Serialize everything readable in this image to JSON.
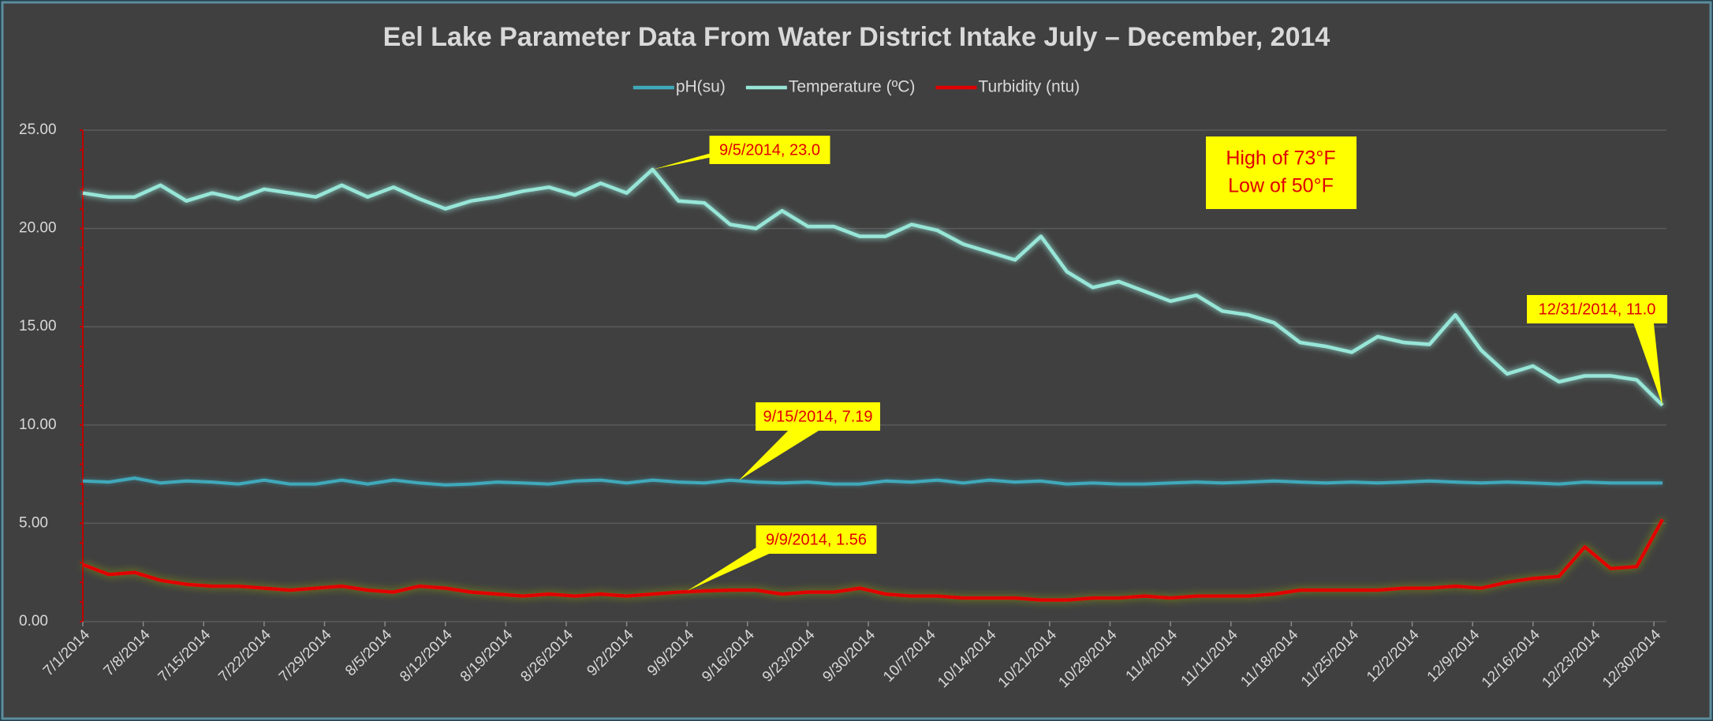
{
  "chart_data": {
    "type": "line",
    "title": "Eel Lake Parameter Data    From Water District Intake    July – December, 2014",
    "x": [
      "7/1/2014",
      "7/4/2014",
      "7/7/2014",
      "7/10/2014",
      "7/13/2014",
      "7/16/2014",
      "7/19/2014",
      "7/22/2014",
      "7/25/2014",
      "7/28/2014",
      "7/31/2014",
      "8/3/2014",
      "8/6/2014",
      "8/9/2014",
      "8/12/2014",
      "8/15/2014",
      "8/18/2014",
      "8/21/2014",
      "8/24/2014",
      "8/27/2014",
      "8/30/2014",
      "9/2/2014",
      "9/5/2014",
      "9/8/2014",
      "9/11/2014",
      "9/14/2014",
      "9/17/2014",
      "9/20/2014",
      "9/23/2014",
      "9/26/2014",
      "9/29/2014",
      "10/2/2014",
      "10/5/2014",
      "10/8/2014",
      "10/11/2014",
      "10/14/2014",
      "10/17/2014",
      "10/20/2014",
      "10/23/2014",
      "10/26/2014",
      "10/29/2014",
      "11/1/2014",
      "11/4/2014",
      "11/7/2014",
      "11/10/2014",
      "11/13/2014",
      "11/16/2014",
      "11/19/2014",
      "11/22/2014",
      "11/25/2014",
      "11/28/2014",
      "12/1/2014",
      "12/4/2014",
      "12/7/2014",
      "12/10/2014",
      "12/13/2014",
      "12/16/2014",
      "12/19/2014",
      "12/22/2014",
      "12/25/2014",
      "12/28/2014",
      "12/31/2014"
    ],
    "series": [
      {
        "name": "pH(su)",
        "color": "#3fa9bb",
        "values": [
          7.15,
          7.1,
          7.3,
          7.05,
          7.15,
          7.1,
          7.0,
          7.2,
          7.0,
          7.0,
          7.2,
          7.0,
          7.2,
          7.05,
          6.95,
          7.0,
          7.1,
          7.05,
          7.0,
          7.15,
          7.2,
          7.05,
          7.2,
          7.1,
          7.05,
          7.19,
          7.1,
          7.05,
          7.1,
          7.0,
          7.0,
          7.15,
          7.1,
          7.2,
          7.05,
          7.2,
          7.1,
          7.15,
          7.0,
          7.05,
          7.0,
          7.0,
          7.05,
          7.1,
          7.05,
          7.1,
          7.15,
          7.1,
          7.05,
          7.1,
          7.05,
          7.1,
          7.15,
          7.1,
          7.05,
          7.1,
          7.05,
          7.0,
          7.1,
          7.05,
          7.05,
          7.05
        ]
      },
      {
        "name": "Temperature (ºC)",
        "color": "#97e6d8",
        "values": [
          21.8,
          21.6,
          21.6,
          22.2,
          21.4,
          21.8,
          21.5,
          22.0,
          21.8,
          21.6,
          22.2,
          21.6,
          22.1,
          21.5,
          21.0,
          21.4,
          21.6,
          21.9,
          22.1,
          21.7,
          22.3,
          21.8,
          23.0,
          21.4,
          21.3,
          20.2,
          20.0,
          20.9,
          20.1,
          20.1,
          19.6,
          19.6,
          20.2,
          19.9,
          19.2,
          18.8,
          18.4,
          19.6,
          17.8,
          17.0,
          17.3,
          16.8,
          16.3,
          16.6,
          15.8,
          15.6,
          15.2,
          14.2,
          14.0,
          13.7,
          14.5,
          14.2,
          14.1,
          15.6,
          13.8,
          12.6,
          13.0,
          12.2,
          12.5,
          12.5,
          12.3,
          11.0
        ]
      },
      {
        "name": "Turbidity (ntu)",
        "color": "#e00000",
        "values": [
          2.9,
          2.4,
          2.5,
          2.1,
          1.9,
          1.8,
          1.8,
          1.7,
          1.6,
          1.7,
          1.8,
          1.6,
          1.5,
          1.8,
          1.7,
          1.5,
          1.4,
          1.3,
          1.4,
          1.3,
          1.4,
          1.3,
          1.4,
          1.5,
          1.56,
          1.6,
          1.6,
          1.4,
          1.5,
          1.5,
          1.7,
          1.4,
          1.3,
          1.3,
          1.2,
          1.2,
          1.2,
          1.1,
          1.1,
          1.2,
          1.2,
          1.3,
          1.2,
          1.3,
          1.3,
          1.3,
          1.4,
          1.6,
          1.6,
          1.6,
          1.6,
          1.7,
          1.7,
          1.8,
          1.7,
          2.0,
          2.2,
          2.3,
          3.8,
          2.7,
          2.8,
          5.2
        ]
      }
    ],
    "xlim": [
      "7/1/2014",
      "12/31/2014"
    ],
    "xticks": [
      "7/1/2014",
      "7/8/2014",
      "7/15/2014",
      "7/22/2014",
      "7/29/2014",
      "8/5/2014",
      "8/12/2014",
      "8/19/2014",
      "8/26/2014",
      "9/2/2014",
      "9/9/2014",
      "9/16/2014",
      "9/23/2014",
      "9/30/2014",
      "10/7/2014",
      "10/14/2014",
      "10/21/2014",
      "10/28/2014",
      "11/4/2014",
      "11/11/2014",
      "11/18/2014",
      "11/25/2014",
      "12/2/2014",
      "12/9/2014",
      "12/16/2014",
      "12/23/2014",
      "12/30/2014"
    ],
    "ylim": [
      0,
      25
    ],
    "yticks": [
      {
        "value": 0,
        "label": "0.00"
      },
      {
        "value": 5,
        "label": "5.00"
      },
      {
        "value": 10,
        "label": "10.00"
      },
      {
        "value": 15,
        "label": "15.00"
      },
      {
        "value": 20,
        "label": "20.00"
      },
      {
        "value": 25,
        "label": "25.00"
      }
    ],
    "grid": true,
    "legend": "top",
    "annotations": [
      {
        "text": "9/5/2014, 23.0",
        "x": "9/5/2014",
        "y": 23.0
      },
      {
        "text": "9/15/2014, 7.19",
        "x": "9/15/2014",
        "y": 7.19
      },
      {
        "text": "9/9/2014, 1.56",
        "x": "9/9/2014",
        "y": 1.56
      },
      {
        "text": "12/31/2014, 11.0",
        "x": "12/31/2014",
        "y": 11.0
      }
    ],
    "text_box": {
      "lines": [
        "High of 73°F",
        "Low of 50°F"
      ]
    }
  }
}
